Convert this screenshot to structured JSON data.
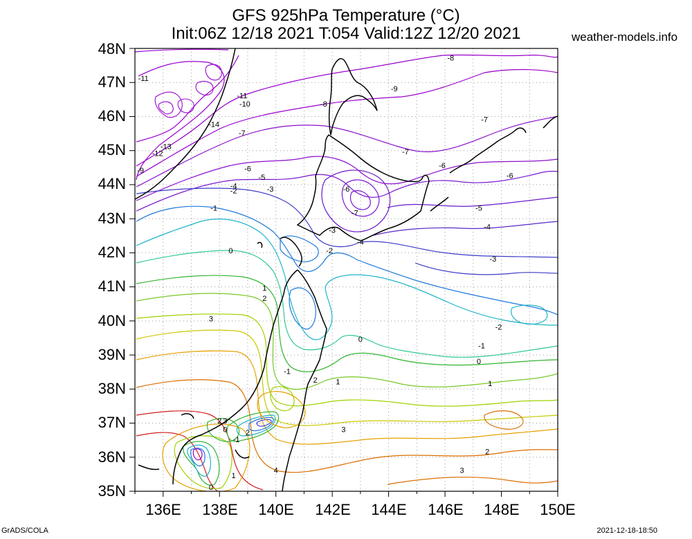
{
  "title_line1": "GFS 925hPa Temperature (°C)",
  "title_line2": "Init:06Z 12/18 2021 T:054 Valid:12Z 12/20 2021",
  "site": "weather-models.info",
  "footer_left": "GrADS/COLA",
  "footer_right": "2021-12-18-18:50",
  "lat_labels": [
    "48N",
    "47N",
    "46N",
    "45N",
    "44N",
    "43N",
    "42N",
    "41N",
    "40N",
    "39N",
    "38N",
    "37N",
    "36N",
    "35N"
  ],
  "lon_labels": [
    "136E",
    "138E",
    "140E",
    "142E",
    "144E",
    "146E",
    "148E",
    "150E"
  ],
  "map_extent": {
    "lon": [
      135,
      150
    ],
    "lat": [
      35,
      48
    ]
  },
  "contour_labels": [
    {
      "text": "-11",
      "lon": 135.3,
      "lat": 47.1
    },
    {
      "text": "-8",
      "lon": 146.2,
      "lat": 47.7
    },
    {
      "text": "-9",
      "lon": 144.2,
      "lat": 46.8
    },
    {
      "text": "-11",
      "lon": 138.8,
      "lat": 46.6
    },
    {
      "text": "-10",
      "lon": 138.9,
      "lat": 46.35
    },
    {
      "text": "-8",
      "lon": 141.7,
      "lat": 46.35
    },
    {
      "text": "-14",
      "lon": 137.8,
      "lat": 45.75
    },
    {
      "text": "-7",
      "lon": 147.4,
      "lat": 45.9
    },
    {
      "text": "-13",
      "lon": 136.1,
      "lat": 45.1
    },
    {
      "text": "-12",
      "lon": 135.8,
      "lat": 44.9
    },
    {
      "text": "-7",
      "lon": 138.8,
      "lat": 45.5
    },
    {
      "text": "-7",
      "lon": 144.6,
      "lat": 44.95
    },
    {
      "text": "-9",
      "lon": 135.2,
      "lat": 44.4
    },
    {
      "text": "-6",
      "lon": 139.0,
      "lat": 44.45
    },
    {
      "text": "-6",
      "lon": 145.9,
      "lat": 44.55
    },
    {
      "text": "-6",
      "lon": 148.3,
      "lat": 44.25
    },
    {
      "text": "-5",
      "lon": 139.5,
      "lat": 44.2
    },
    {
      "text": "-4",
      "lon": 138.5,
      "lat": 43.95
    },
    {
      "text": "-3",
      "lon": 139.8,
      "lat": 43.85
    },
    {
      "text": "-2",
      "lon": 138.5,
      "lat": 43.8
    },
    {
      "text": "-6",
      "lon": 142.5,
      "lat": 43.85
    },
    {
      "text": "-1",
      "lon": 137.8,
      "lat": 43.3
    },
    {
      "text": "-5",
      "lon": 147.2,
      "lat": 43.3
    },
    {
      "text": "-7",
      "lon": 142.8,
      "lat": 43.15
    },
    {
      "text": "-4",
      "lon": 147.5,
      "lat": 42.75
    },
    {
      "text": "-3",
      "lon": 142.0,
      "lat": 42.65
    },
    {
      "text": "-4",
      "lon": 143.0,
      "lat": 42.3
    },
    {
      "text": "-2",
      "lon": 141.9,
      "lat": 42.05
    },
    {
      "text": "0",
      "lon": 138.4,
      "lat": 42.05
    },
    {
      "text": "-3",
      "lon": 147.7,
      "lat": 41.8
    },
    {
      "text": "1",
      "lon": 139.6,
      "lat": 40.95
    },
    {
      "text": "2",
      "lon": 139.6,
      "lat": 40.65
    },
    {
      "text": "3",
      "lon": 137.7,
      "lat": 40.05
    },
    {
      "text": "-2",
      "lon": 147.9,
      "lat": 39.8
    },
    {
      "text": "0",
      "lon": 143.0,
      "lat": 39.45
    },
    {
      "text": "-1",
      "lon": 147.3,
      "lat": 39.25
    },
    {
      "text": "0",
      "lon": 147.2,
      "lat": 38.8
    },
    {
      "text": "-1",
      "lon": 140.4,
      "lat": 38.5
    },
    {
      "text": "2",
      "lon": 141.4,
      "lat": 38.25
    },
    {
      "text": "1",
      "lon": 142.2,
      "lat": 38.2
    },
    {
      "text": "1",
      "lon": 147.6,
      "lat": 38.15
    },
    {
      "text": "2",
      "lon": 138.0,
      "lat": 37.05
    },
    {
      "text": "3",
      "lon": 138.2,
      "lat": 37.05
    },
    {
      "text": "0",
      "lon": 138.2,
      "lat": 36.8
    },
    {
      "text": "-1",
      "lon": 138.6,
      "lat": 36.5
    },
    {
      "text": "2",
      "lon": 139.0,
      "lat": 36.7
    },
    {
      "text": "3",
      "lon": 142.4,
      "lat": 36.8
    },
    {
      "text": "2",
      "lon": 147.5,
      "lat": 36.15
    },
    {
      "text": "1",
      "lon": 138.5,
      "lat": 35.45
    },
    {
      "text": "4",
      "lon": 140.0,
      "lat": 35.6
    },
    {
      "text": "3",
      "lon": 146.6,
      "lat": 35.6
    },
    {
      "text": "0",
      "lon": 137.7,
      "lat": 35.1
    }
  ],
  "colors": {
    "neg_cold": "#9900cc",
    "neg_mid": "#7a1ad0",
    "neg_low": "#3c3cc8",
    "blue": "#1e78dc",
    "cyan": "#1eb4c8",
    "green": "#32b432",
    "yellowgreen": "#a0d200",
    "orange": "#e6a000",
    "darkorange": "#dc6e00",
    "red": "#d21e1e",
    "coast": "#000000",
    "grid": "#999999"
  }
}
